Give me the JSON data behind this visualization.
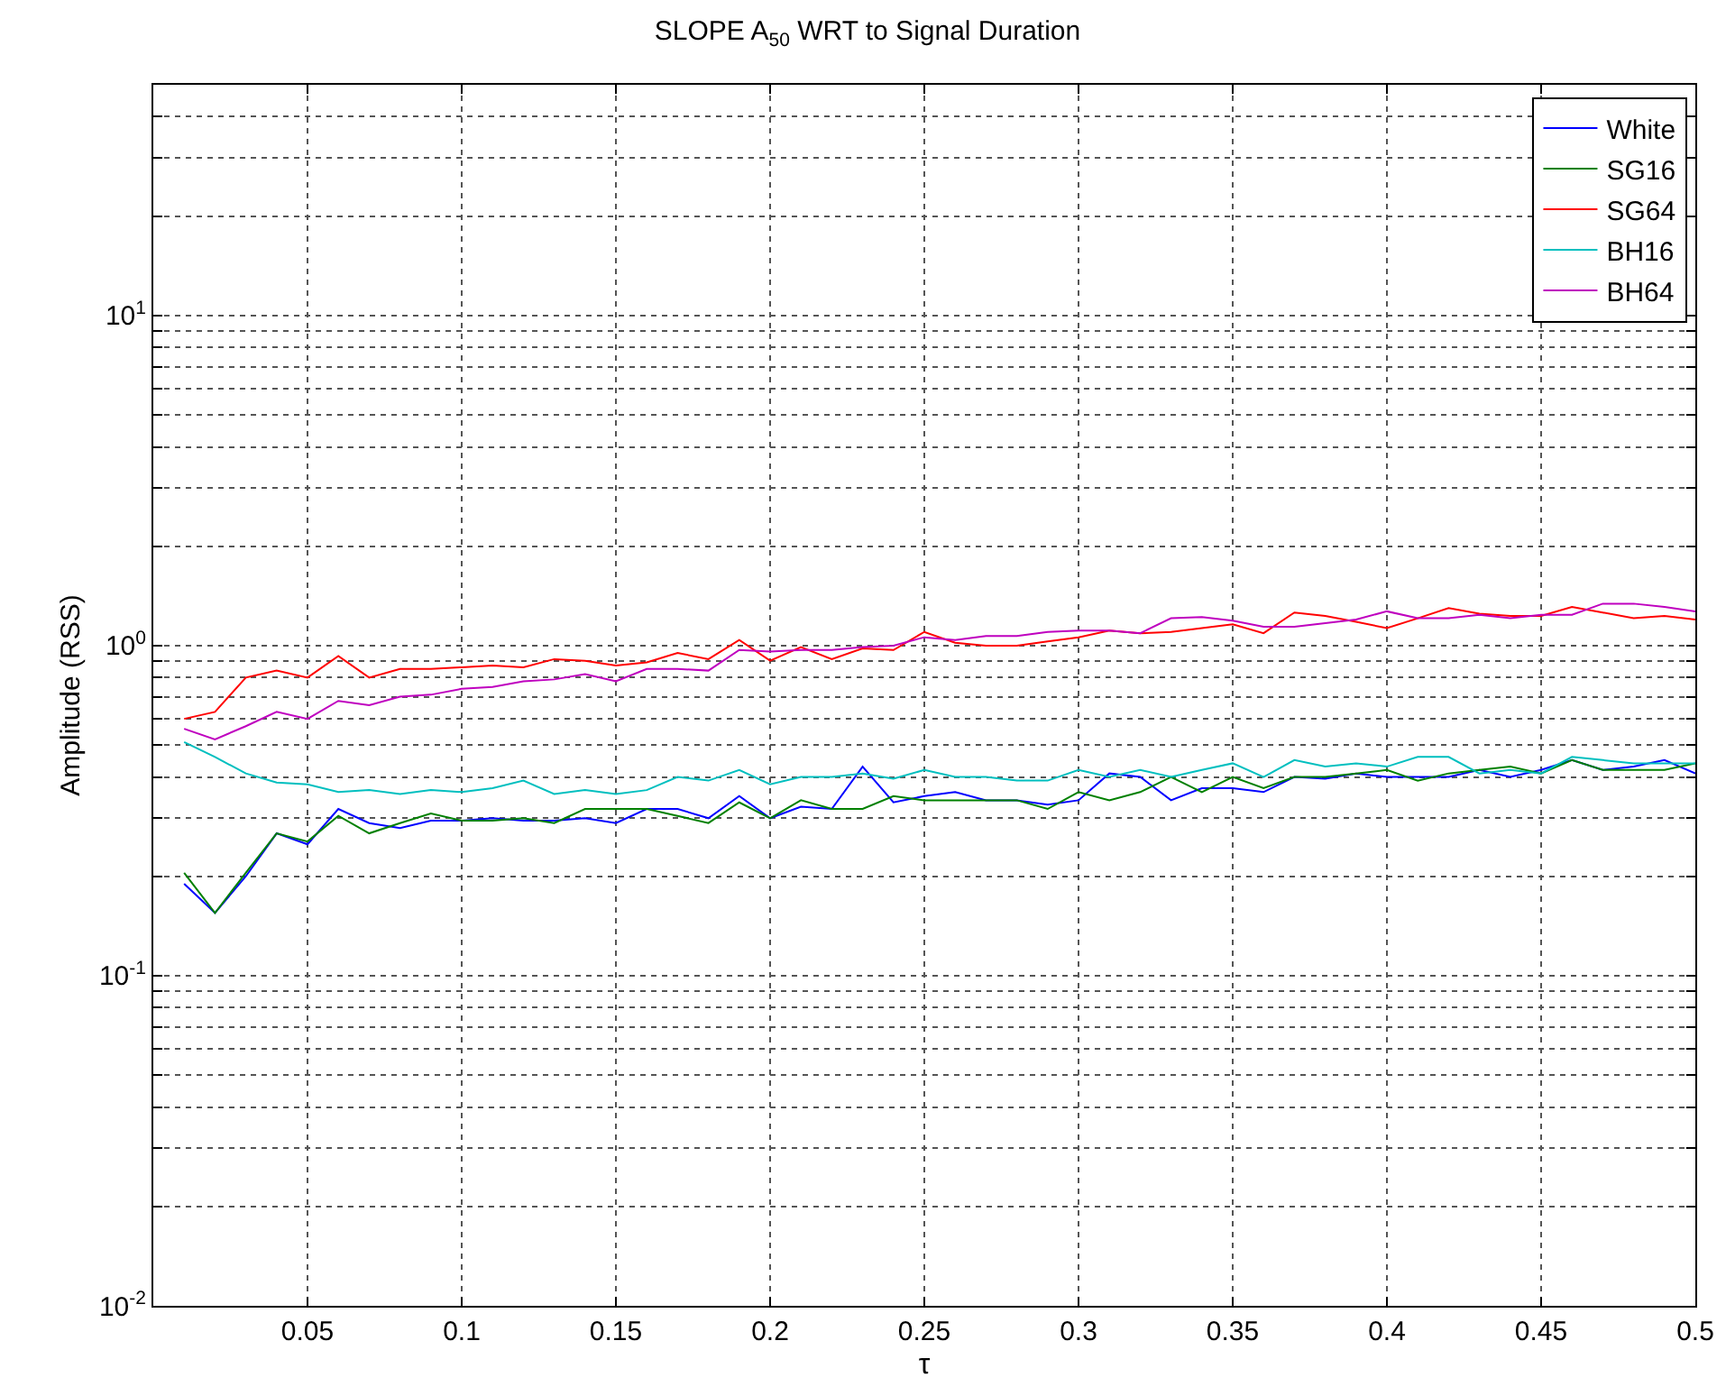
{
  "chart_data": {
    "type": "line",
    "title": "SLOPE A$_{50}$ WRT to Signal Duration",
    "xlabel": "τ",
    "ylabel": "Amplitude (RSS)",
    "x": [
      0.01,
      0.02,
      0.03,
      0.04,
      0.05,
      0.06,
      0.07,
      0.08,
      0.09,
      0.1,
      0.11,
      0.12,
      0.13,
      0.14,
      0.15,
      0.16,
      0.17,
      0.18,
      0.19,
      0.2,
      0.21,
      0.22,
      0.23,
      0.24,
      0.25,
      0.26,
      0.27,
      0.28,
      0.29,
      0.3,
      0.31,
      0.32,
      0.33,
      0.34,
      0.35,
      0.36,
      0.37,
      0.38,
      0.39,
      0.4,
      0.41,
      0.42,
      0.43,
      0.44,
      0.45,
      0.46,
      0.47,
      0.48,
      0.49,
      0.5
    ],
    "series": [
      {
        "name": "White",
        "color": "#0000ff",
        "values": [
          0.19,
          0.155,
          0.2,
          0.27,
          0.25,
          0.32,
          0.29,
          0.28,
          0.295,
          0.295,
          0.3,
          0.295,
          0.295,
          0.3,
          0.29,
          0.32,
          0.32,
          0.3,
          0.35,
          0.3,
          0.325,
          0.32,
          0.43,
          0.335,
          0.35,
          0.36,
          0.34,
          0.34,
          0.33,
          0.34,
          0.41,
          0.4,
          0.34,
          0.37,
          0.37,
          0.36,
          0.4,
          0.395,
          0.41,
          0.4,
          0.4,
          0.4,
          0.42,
          0.4,
          0.42,
          0.45,
          0.42,
          0.43,
          0.45,
          0.41
        ]
      },
      {
        "name": "SG16",
        "color": "#008000",
        "values": [
          0.205,
          0.155,
          0.205,
          0.27,
          0.255,
          0.305,
          0.27,
          0.29,
          0.31,
          0.295,
          0.295,
          0.3,
          0.29,
          0.32,
          0.32,
          0.32,
          0.305,
          0.29,
          0.335,
          0.3,
          0.34,
          0.32,
          0.32,
          0.35,
          0.34,
          0.34,
          0.34,
          0.34,
          0.32,
          0.36,
          0.34,
          0.36,
          0.4,
          0.36,
          0.4,
          0.37,
          0.4,
          0.4,
          0.41,
          0.42,
          0.39,
          0.41,
          0.42,
          0.43,
          0.41,
          0.45,
          0.42,
          0.42,
          0.42,
          0.44
        ]
      },
      {
        "name": "SG64",
        "color": "#ff0000",
        "values": [
          0.6,
          0.63,
          0.8,
          0.84,
          0.8,
          0.93,
          0.8,
          0.85,
          0.85,
          0.86,
          0.87,
          0.86,
          0.91,
          0.9,
          0.87,
          0.89,
          0.95,
          0.91,
          1.04,
          0.9,
          0.99,
          0.91,
          0.98,
          0.97,
          1.1,
          1.02,
          1.0,
          1.0,
          1.03,
          1.06,
          1.11,
          1.09,
          1.1,
          1.13,
          1.16,
          1.09,
          1.26,
          1.23,
          1.18,
          1.13,
          1.21,
          1.3,
          1.25,
          1.23,
          1.23,
          1.31,
          1.26,
          1.21,
          1.23,
          1.2
        ]
      },
      {
        "name": "BH16",
        "color": "#00bfbf",
        "values": [
          0.51,
          0.46,
          0.41,
          0.385,
          0.38,
          0.36,
          0.365,
          0.355,
          0.365,
          0.36,
          0.37,
          0.39,
          0.355,
          0.365,
          0.355,
          0.365,
          0.4,
          0.39,
          0.42,
          0.38,
          0.4,
          0.4,
          0.41,
          0.395,
          0.42,
          0.4,
          0.4,
          0.39,
          0.39,
          0.42,
          0.4,
          0.42,
          0.4,
          0.42,
          0.44,
          0.4,
          0.45,
          0.43,
          0.44,
          0.43,
          0.46,
          0.46,
          0.41,
          0.42,
          0.41,
          0.46,
          0.45,
          0.44,
          0.44,
          0.44
        ]
      },
      {
        "name": "BH64",
        "color": "#bf00bf",
        "values": [
          0.56,
          0.52,
          0.57,
          0.63,
          0.6,
          0.68,
          0.66,
          0.7,
          0.71,
          0.74,
          0.75,
          0.78,
          0.79,
          0.82,
          0.78,
          0.85,
          0.85,
          0.84,
          0.97,
          0.96,
          0.97,
          0.97,
          0.99,
          1.0,
          1.06,
          1.04,
          1.07,
          1.07,
          1.1,
          1.11,
          1.11,
          1.09,
          1.21,
          1.22,
          1.19,
          1.14,
          1.14,
          1.17,
          1.2,
          1.27,
          1.21,
          1.21,
          1.24,
          1.21,
          1.24,
          1.24,
          1.34,
          1.34,
          1.31,
          1.27
        ]
      }
    ],
    "log": "y",
    "xlim": [
      0,
      0.5
    ],
    "ylim": [
      0.01,
      50
    ],
    "xticks": [
      0.05,
      0.1,
      0.15,
      0.2,
      0.25,
      0.3,
      0.35,
      0.4,
      0.45,
      0.5
    ],
    "yticks": [
      {
        "value": 0.01,
        "label": "10$^{-2}$"
      },
      {
        "value": 0.02,
        "label": null
      },
      {
        "value": 0.03,
        "label": null
      },
      {
        "value": 0.04,
        "label": null
      },
      {
        "value": 0.05,
        "label": null
      },
      {
        "value": 0.06,
        "label": null
      },
      {
        "value": 0.07,
        "label": null
      },
      {
        "value": 0.08,
        "label": null
      },
      {
        "value": 0.09,
        "label": null
      },
      {
        "value": 0.1,
        "label": "10$^{-1}$"
      },
      {
        "value": 0.2,
        "label": null
      },
      {
        "value": 0.3,
        "label": null
      },
      {
        "value": 0.4,
        "label": null
      },
      {
        "value": 0.5,
        "label": null
      },
      {
        "value": 0.6,
        "label": null
      },
      {
        "value": 0.7,
        "label": null
      },
      {
        "value": 0.8,
        "label": null
      },
      {
        "value": 0.9,
        "label": null
      },
      {
        "value": 1,
        "label": "10$^{0}$"
      },
      {
        "value": 2,
        "label": null
      },
      {
        "value": 3,
        "label": null
      },
      {
        "value": 4,
        "label": null
      },
      {
        "value": 5,
        "label": null
      },
      {
        "value": 6,
        "label": null
      },
      {
        "value": 7,
        "label": null
      },
      {
        "value": 8,
        "label": null
      },
      {
        "value": 9,
        "label": null
      },
      {
        "value": 10,
        "label": "10$^{1}$"
      },
      {
        "value": 20,
        "label": null
      },
      {
        "value": 30,
        "label": null
      },
      {
        "value": 40,
        "label": null
      },
      {
        "value": 50,
        "label": null
      }
    ],
    "grid": true,
    "legend": "top right",
    "marker": "none",
    "line_style": "solid"
  }
}
